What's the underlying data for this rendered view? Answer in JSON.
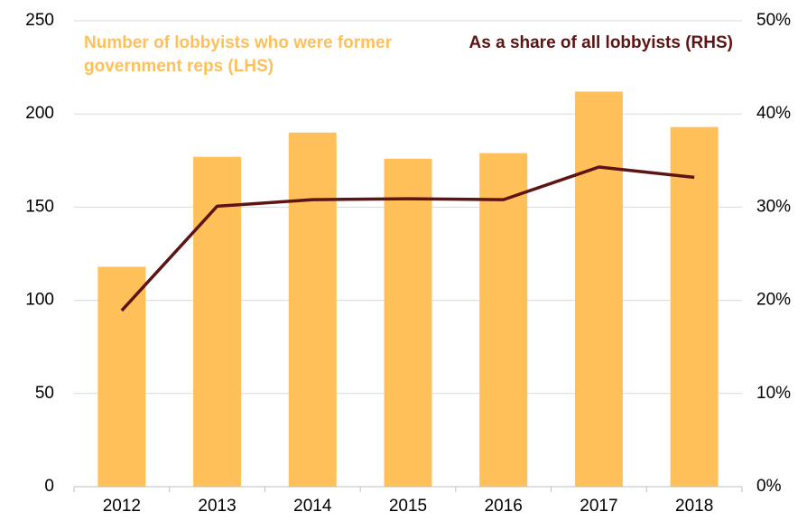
{
  "chart_data": {
    "type": "bar",
    "categories": [
      "2012",
      "2013",
      "2014",
      "2015",
      "2016",
      "2017",
      "2018"
    ],
    "series": [
      {
        "name": "Number of lobbyists who were former government reps (LHS)",
        "type": "bar",
        "color": "#ffc05a",
        "values": [
          118,
          177,
          190,
          176,
          179,
          212,
          193
        ]
      },
      {
        "name": "As a share of all lobbyists (RHS)",
        "type": "line",
        "axis": "y2",
        "color": "#5c1414",
        "values": [
          18.9,
          30.1,
          30.8,
          30.9,
          30.8,
          34.3,
          33.2
        ]
      }
    ],
    "ylim": [
      0,
      250
    ],
    "yticks": [
      0,
      50,
      100,
      150,
      200,
      250
    ],
    "y2lim": [
      0,
      50
    ],
    "y2ticks": [
      {
        "value": 0,
        "label": "0%"
      },
      {
        "value": 10,
        "label": "10%"
      },
      {
        "value": 20,
        "label": "20%"
      },
      {
        "value": 30,
        "label": "30%"
      },
      {
        "value": 40,
        "label": "40%"
      },
      {
        "value": 50,
        "label": "50%"
      }
    ],
    "grid": true
  }
}
